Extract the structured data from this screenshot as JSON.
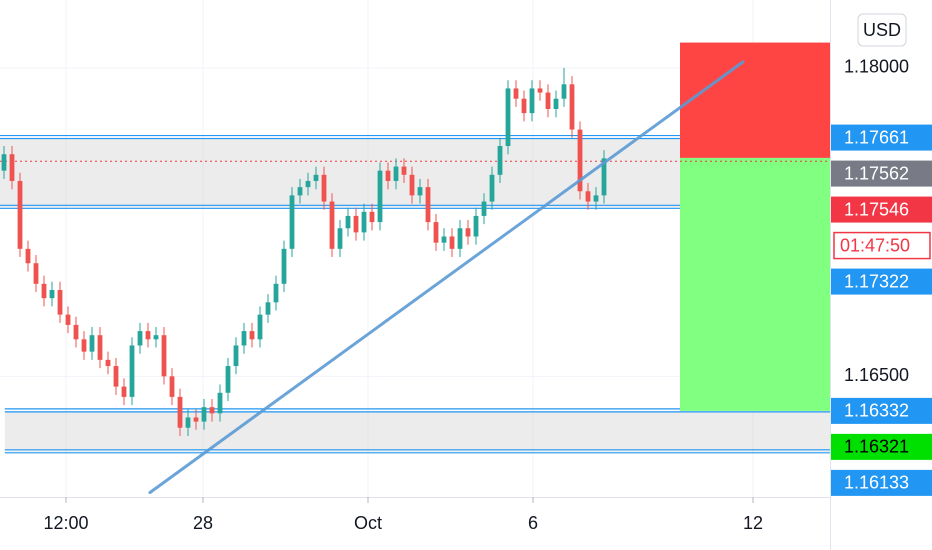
{
  "chart_data": {
    "type": "candlestick",
    "up_color": "#26a69a",
    "down_color": "#ef5350",
    "ylim": [
      1.1585,
      1.1833
    ],
    "yticks": [
      {
        "value": 1.165,
        "label": "1.16500"
      },
      {
        "value": 1.18,
        "label": "1.18000"
      }
    ],
    "xlim": [
      -0.5,
      103.25
    ],
    "xticks": [
      {
        "value": 7.75,
        "label": "12:00"
      },
      {
        "value": 24.875,
        "label": "28"
      },
      {
        "value": 45.5,
        "label": "Oct"
      },
      {
        "value": 66.125,
        "label": "6"
      },
      {
        "value": 93.625,
        "label": "12"
      }
    ],
    "grid": true,
    "currency": "USD",
    "countdown": "01:47:50",
    "current_price": 1.17546,
    "zones": [
      {
        "top": 1.17661,
        "bottom": 1.17322,
        "x0": -0.5
      },
      {
        "top": 1.16332,
        "bottom": 1.16133,
        "x0": 0.1
      }
    ],
    "trendline": {
      "x": [
        18.25,
        92.375
      ],
      "y": [
        1.15935,
        1.18029
      ],
      "color": "#5b9bd5"
    },
    "position": {
      "x0": 84.5,
      "entry": 1.17562,
      "stop": 1.18123,
      "target": 1.16332,
      "stop_color": "#ff4444",
      "target_color": "#80ff80"
    },
    "badges": [
      {
        "value": 1.17661,
        "color": "#2196f3"
      },
      {
        "value": 1.17562,
        "color": "#787b86"
      },
      {
        "value": 1.17546,
        "color": "#f23645",
        "countdown": true
      },
      {
        "value": 1.17322,
        "color": "#2196f3"
      },
      {
        "value": 1.16332,
        "color": "#2196f3"
      },
      {
        "value": 1.16321,
        "color": "#00e000",
        "text_color": "#000"
      },
      {
        "value": 1.16133,
        "color": "#2196f3"
      }
    ],
    "candles": [
      [
        1.175,
        1.1762,
        1.1746,
        1.1758
      ],
      [
        1.1758,
        1.1762,
        1.1741,
        1.1745
      ],
      [
        1.1745,
        1.1749,
        1.1708,
        1.1712
      ],
      [
        1.1712,
        1.1716,
        1.1701,
        1.1705
      ],
      [
        1.1705,
        1.1709,
        1.1691,
        1.1695
      ],
      [
        1.1695,
        1.1699,
        1.1684,
        1.1688
      ],
      [
        1.1688,
        1.1696,
        1.1684,
        1.1692
      ],
      [
        1.1692,
        1.1696,
        1.1676,
        1.168
      ],
      [
        1.168,
        1.1684,
        1.1671,
        1.1675
      ],
      [
        1.1675,
        1.1679,
        1.1664,
        1.1668
      ],
      [
        1.1668,
        1.1672,
        1.1658,
        1.1662
      ],
      [
        1.1662,
        1.1674,
        1.1658,
        1.167
      ],
      [
        1.167,
        1.1674,
        1.1654,
        1.1658
      ],
      [
        1.1658,
        1.1662,
        1.1651,
        1.1655
      ],
      [
        1.1655,
        1.1659,
        1.1641,
        1.1645
      ],
      [
        1.1645,
        1.1649,
        1.1636,
        1.164
      ],
      [
        1.164,
        1.1669,
        1.1636,
        1.1665
      ],
      [
        1.1665,
        1.1676,
        1.1661,
        1.1672
      ],
      [
        1.1672,
        1.1676,
        1.1664,
        1.1668
      ],
      [
        1.1668,
        1.1674,
        1.1664,
        1.167
      ],
      [
        1.167,
        1.1674,
        1.1646,
        1.165
      ],
      [
        1.165,
        1.1654,
        1.1636,
        1.164
      ],
      [
        1.164,
        1.1644,
        1.1621,
        1.1625
      ],
      [
        1.1625,
        1.1634,
        1.1621,
        1.163
      ],
      [
        1.163,
        1.1634,
        1.1624,
        1.1628
      ],
      [
        1.1628,
        1.1639,
        1.1624,
        1.1635
      ],
      [
        1.1635,
        1.1639,
        1.1628,
        1.1632
      ],
      [
        1.1632,
        1.1646,
        1.1628,
        1.1642
      ],
      [
        1.1642,
        1.1659,
        1.1638,
        1.1655
      ],
      [
        1.1655,
        1.1669,
        1.1651,
        1.1665
      ],
      [
        1.1665,
        1.1676,
        1.1661,
        1.1672
      ],
      [
        1.1672,
        1.1676,
        1.1664,
        1.1668
      ],
      [
        1.1668,
        1.1684,
        1.1664,
        1.168
      ],
      [
        1.168,
        1.169,
        1.1676,
        1.1686
      ],
      [
        1.1686,
        1.1699,
        1.1682,
        1.1695
      ],
      [
        1.1695,
        1.1716,
        1.1691,
        1.1712
      ],
      [
        1.1712,
        1.1742,
        1.1708,
        1.1738
      ],
      [
        1.1738,
        1.1746,
        1.1734,
        1.1742
      ],
      [
        1.1742,
        1.1749,
        1.1738,
        1.1745
      ],
      [
        1.1745,
        1.1752,
        1.1741,
        1.1748
      ],
      [
        1.1748,
        1.1752,
        1.1731,
        1.1735
      ],
      [
        1.1735,
        1.1739,
        1.1708,
        1.1712
      ],
      [
        1.1712,
        1.1726,
        1.1708,
        1.1722
      ],
      [
        1.1722,
        1.1732,
        1.1718,
        1.1728
      ],
      [
        1.1728,
        1.1732,
        1.1716,
        1.172
      ],
      [
        1.172,
        1.1734,
        1.1716,
        1.173
      ],
      [
        1.173,
        1.1734,
        1.1721,
        1.1725
      ],
      [
        1.1725,
        1.1754,
        1.1721,
        1.175
      ],
      [
        1.175,
        1.1754,
        1.1741,
        1.1745
      ],
      [
        1.1745,
        1.1756,
        1.1741,
        1.1752
      ],
      [
        1.1752,
        1.1756,
        1.1744,
        1.1748
      ],
      [
        1.1748,
        1.1752,
        1.1734,
        1.1738
      ],
      [
        1.1738,
        1.1746,
        1.1734,
        1.1742
      ],
      [
        1.1742,
        1.1746,
        1.1721,
        1.1725
      ],
      [
        1.1725,
        1.1729,
        1.1711,
        1.1715
      ],
      [
        1.1715,
        1.1722,
        1.1711,
        1.1718
      ],
      [
        1.1718,
        1.1722,
        1.1708,
        1.1712
      ],
      [
        1.1712,
        1.1726,
        1.1708,
        1.1722
      ],
      [
        1.1722,
        1.1726,
        1.1714,
        1.1718
      ],
      [
        1.1718,
        1.1732,
        1.1714,
        1.1728
      ],
      [
        1.1728,
        1.1739,
        1.1724,
        1.1735
      ],
      [
        1.1735,
        1.1752,
        1.1731,
        1.1748
      ],
      [
        1.1748,
        1.1766,
        1.1744,
        1.1762
      ],
      [
        1.1762,
        1.1794,
        1.1758,
        1.179
      ],
      [
        1.179,
        1.1794,
        1.1781,
        1.1785
      ],
      [
        1.1785,
        1.1789,
        1.1774,
        1.1778
      ],
      [
        1.1778,
        1.1794,
        1.1774,
        1.179
      ],
      [
        1.179,
        1.1794,
        1.1784,
        1.1788
      ],
      [
        1.1788,
        1.1792,
        1.1776,
        1.178
      ],
      [
        1.178,
        1.1789,
        1.1776,
        1.1785
      ],
      [
        1.1785,
        1.18,
        1.1781,
        1.1792
      ],
      [
        1.1792,
        1.1796,
        1.1766,
        1.177
      ],
      [
        1.177,
        1.1774,
        1.1736,
        1.174
      ],
      [
        1.174,
        1.1744,
        1.1731,
        1.1735
      ],
      [
        1.1735,
        1.1742,
        1.1731,
        1.1738
      ],
      [
        1.1738,
        1.176,
        1.1734,
        1.1756
      ]
    ]
  }
}
